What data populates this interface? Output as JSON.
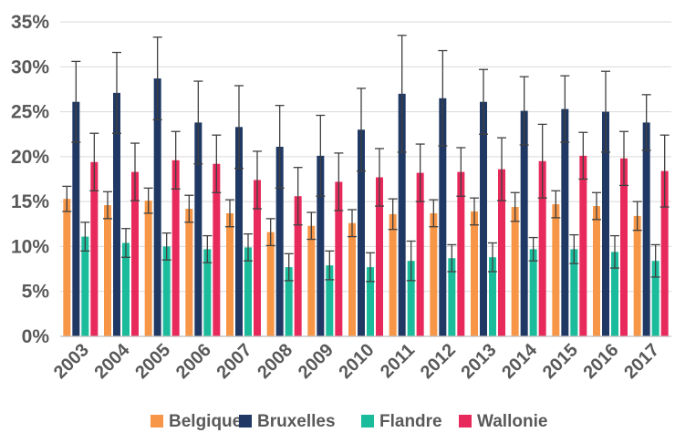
{
  "chart_data": {
    "type": "bar",
    "categories": [
      "2003",
      "2004",
      "2005",
      "2006",
      "2007",
      "2008",
      "2009",
      "2010",
      "2011",
      "2012",
      "2013",
      "2014",
      "2015",
      "2016",
      "2017"
    ],
    "ylim": [
      0,
      35
    ],
    "y_ticks": [
      "0%",
      "5%",
      "10%",
      "15%",
      "20%",
      "25%",
      "30%",
      "35%"
    ],
    "y_tick_values": [
      0,
      5,
      10,
      15,
      20,
      25,
      30,
      35
    ],
    "grid": true,
    "legend_position": "bottom",
    "error_bars": true,
    "series": [
      {
        "name": "Belgique",
        "color": "#F79646",
        "values": [
          15.3,
          14.6,
          15.1,
          14.2,
          13.7,
          11.6,
          12.3,
          12.6,
          13.6,
          13.7,
          13.9,
          14.4,
          14.7,
          14.5,
          13.4
        ],
        "err": [
          1.4,
          1.5,
          1.4,
          1.5,
          1.5,
          1.5,
          1.5,
          1.5,
          1.7,
          1.5,
          1.5,
          1.6,
          1.5,
          1.5,
          1.6
        ]
      },
      {
        "name": "Bruxelles",
        "color": "#1F3864",
        "values": [
          26.1,
          27.1,
          28.7,
          23.8,
          23.3,
          21.1,
          20.1,
          23.0,
          27.0,
          26.5,
          26.1,
          25.1,
          25.3,
          25.0,
          23.8
        ],
        "err": [
          4.5,
          4.5,
          4.6,
          4.6,
          4.6,
          4.6,
          4.5,
          4.6,
          6.5,
          5.3,
          3.6,
          3.8,
          3.7,
          4.5,
          3.1
        ]
      },
      {
        "name": "Flandre",
        "color": "#1ABC9C",
        "values": [
          11.1,
          10.4,
          10.0,
          9.7,
          9.9,
          7.7,
          7.9,
          7.7,
          8.4,
          8.7,
          8.8,
          9.7,
          9.7,
          9.4,
          8.4
        ],
        "err": [
          1.6,
          1.6,
          1.5,
          1.5,
          1.5,
          1.5,
          1.6,
          1.6,
          2.2,
          1.5,
          1.6,
          1.3,
          1.6,
          1.8,
          1.8
        ]
      },
      {
        "name": "Wallonie",
        "color": "#E8295C",
        "values": [
          19.4,
          18.3,
          19.6,
          19.2,
          17.4,
          15.6,
          17.2,
          17.7,
          18.2,
          18.3,
          18.6,
          19.5,
          20.1,
          19.8,
          18.4
        ],
        "err": [
          3.2,
          3.2,
          3.2,
          3.2,
          3.2,
          3.2,
          3.2,
          3.2,
          3.2,
          2.7,
          3.5,
          4.1,
          2.6,
          3.0,
          4.0
        ]
      }
    ]
  }
}
